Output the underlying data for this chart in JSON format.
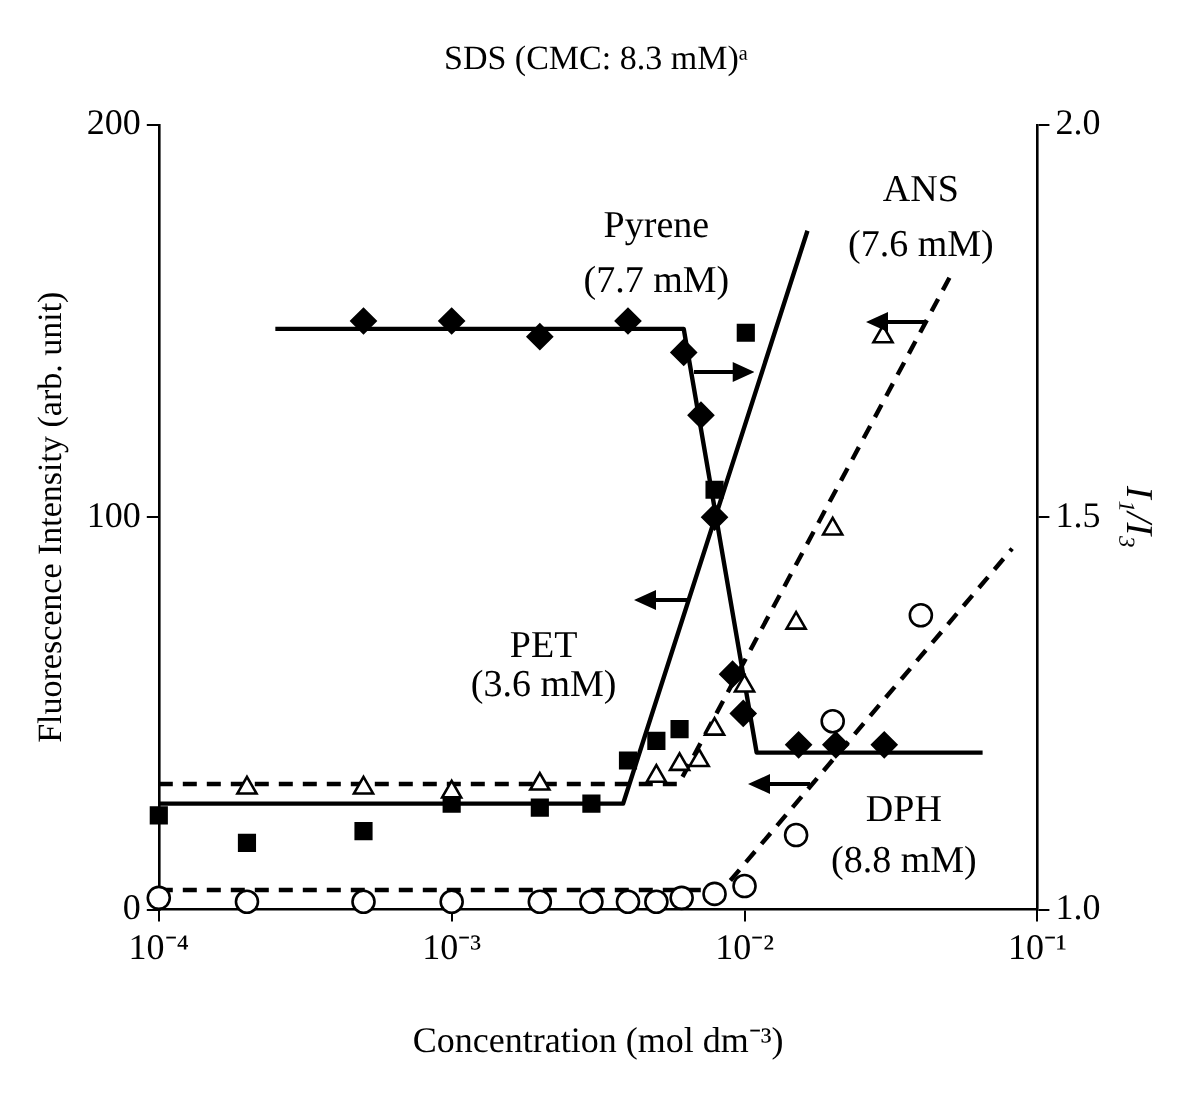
{
  "chart_data": {
    "type": "scatter",
    "title": "SDS (CMC: 8.3 mM)ᵃ",
    "xlabel": "Concentration (mol dm⁻³)",
    "ylabel": "Fluorescence Intensity (arb. unit)",
    "y2label": "I₁/I₃",
    "log": "x",
    "grid": false,
    "legend": false,
    "xlim": [
      0.0001,
      0.1
    ],
    "xticks": [
      {
        "value": 0.0001,
        "label": "10⁻⁴"
      },
      {
        "value": 0.001,
        "label": "10⁻³"
      },
      {
        "value": 0.01,
        "label": "10⁻²"
      },
      {
        "value": 0.1,
        "label": "10⁻¹"
      }
    ],
    "ylim": [
      0,
      200
    ],
    "yticks": [
      0,
      100,
      200
    ],
    "y2lim": [
      1,
      2
    ],
    "y2ticks": [
      {
        "value": 1,
        "label": "1.0"
      },
      {
        "value": 1.5,
        "label": "1.5"
      },
      {
        "value": 2,
        "label": "2.0"
      }
    ],
    "series": [
      {
        "marker": "diamond",
        "color": "#000000",
        "axis": "y2",
        "x": [
          0.0005,
          0.001,
          0.002,
          0.004,
          0.0062,
          0.0071,
          0.0079,
          0.0091,
          0.0099,
          0.0153,
          0.0205,
          0.03
        ],
        "values": [
          1.75,
          1.75,
          1.73,
          1.75,
          1.71,
          1.63,
          1.5,
          1.3,
          1.25,
          1.21,
          1.21,
          1.21
        ]
      },
      {
        "marker": "square",
        "color": "#000000",
        "x": [
          0.0001,
          0.0002,
          0.0005,
          0.001,
          0.002,
          0.003,
          0.004,
          0.005,
          0.006,
          0.0079,
          0.0101
        ],
        "values": [
          24,
          17,
          20,
          27,
          26,
          27,
          38,
          43,
          46,
          107,
          147
        ]
      },
      {
        "marker": "triangle",
        "color": "#000000",
        "x": [
          0.0002,
          0.0005,
          0.001,
          0.002,
          0.005,
          0.006,
          0.007,
          0.0079,
          0.01,
          0.015,
          0.02,
          0.0297
        ],
        "values": [
          31,
          31,
          30,
          32,
          34,
          37,
          38,
          46,
          57,
          73,
          97,
          146
        ]
      },
      {
        "marker": "circle",
        "color": "#000000",
        "x": [
          0.0001,
          0.0002,
          0.0005,
          0.001,
          0.002,
          0.003,
          0.004,
          0.005,
          0.0061,
          0.0079,
          0.01,
          0.015,
          0.02,
          0.04
        ],
        "values": [
          3,
          2,
          2,
          2,
          2,
          2,
          2,
          2,
          3,
          4,
          6,
          19,
          48,
          75
        ]
      },
      {
        "type": "line",
        "marker": "none",
        "line_style": "solid",
        "color": "#000000",
        "axis": "y2",
        "x": [
          0.00025,
          0.0062,
          0.011,
          0.065
        ],
        "values": [
          1.74,
          1.74,
          1.2,
          1.2
        ]
      },
      {
        "type": "line",
        "marker": "none",
        "line_style": "solid",
        "color": "#000000",
        "x": [
          0.0001,
          0.00385,
          0.0164
        ],
        "values": [
          27,
          27,
          173
        ]
      },
      {
        "type": "line",
        "marker": "none",
        "line_style": "dashed",
        "color": "#000000",
        "x": [
          0.0001,
          0.00596,
          0.0509
        ],
        "values": [
          32,
          32,
          162
        ]
      },
      {
        "type": "line",
        "marker": "none",
        "line_style": "dashed",
        "color": "#000000",
        "x": [
          0.0001,
          0.0084,
          0.082
        ],
        "values": [
          5,
          5,
          92
        ]
      }
    ],
    "annotations": [
      "Pyrene",
      "(7.7 mM)",
      "ANS",
      "(7.6 mM)",
      "PET",
      "(3.6 mM)",
      "DPH",
      "(8.8 mM)"
    ]
  }
}
